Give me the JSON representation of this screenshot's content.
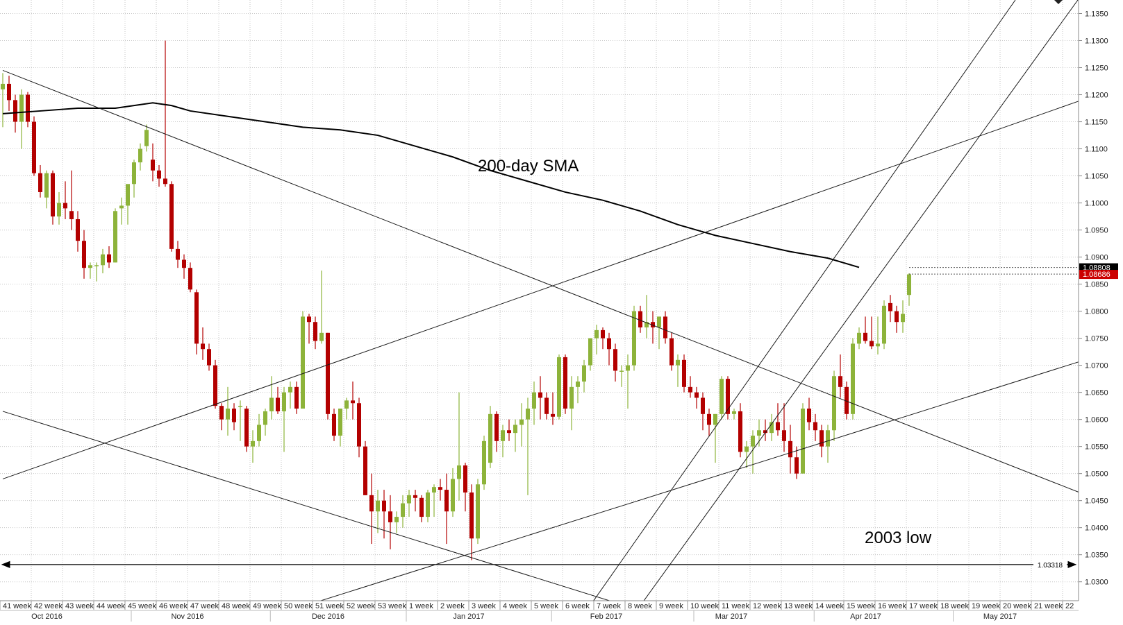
{
  "chart_data": {
    "type": "candlestick",
    "instrument": "",
    "title": "",
    "annotations": {
      "sma_label": "200-day SMA",
      "low_label": "2003 low"
    },
    "ylim": [
      1.0265,
      1.1375
    ],
    "y_ticks": [
      "1.1350",
      "1.1300",
      "1.1250",
      "1.1200",
      "1.1150",
      "1.1100",
      "1.1050",
      "1.1000",
      "1.0950",
      "1.0900",
      "1.0850",
      "1.0800",
      "1.0750",
      "1.0700",
      "1.0650",
      "1.0600",
      "1.0550",
      "1.0500",
      "1.0450",
      "1.0400",
      "1.0350",
      "1.0300"
    ],
    "price_tags": [
      {
        "label": "1.08808",
        "value": 1.08808,
        "color": "#000000"
      },
      {
        "label": "1.08686",
        "value": 1.08686,
        "color": "#cc0000"
      }
    ],
    "horizontal_line": {
      "value": 1.03318,
      "label": "1.03318"
    },
    "week_labels": [
      "41 week",
      "42 week",
      "43 week",
      "44 week",
      "45 week",
      "46 week",
      "47 week",
      "48 week",
      "49 week",
      "50 week",
      "51 week",
      "52 week",
      "53 week",
      "1 week",
      "2 week",
      "3 week",
      "4 week",
      "5 week",
      "6 week",
      "7 week",
      "8 week",
      "9 week",
      "10 week",
      "11 week",
      "12 week",
      "13 week",
      "14 week",
      "15 week",
      "16 week",
      "17 week",
      "18 week",
      "19 week",
      "20 week",
      "21 week",
      "22"
    ],
    "month_labels": [
      {
        "label": "Oct 2016",
        "week": 1.5
      },
      {
        "label": "Nov 2016",
        "week": 6
      },
      {
        "label": "Dec 2016",
        "week": 10.5
      },
      {
        "label": "Jan 2017",
        "week": 15
      },
      {
        "label": "Feb 2017",
        "week": 19.4
      },
      {
        "label": "Mar 2017",
        "week": 23.4
      },
      {
        "label": "Apr 2017",
        "week": 27.7
      },
      {
        "label": "May 2017",
        "week": 32
      }
    ],
    "colors": {
      "up": "#8db33a",
      "down": "#b30000",
      "wick": "#333333",
      "line": "#000000",
      "grid": "#c8c8c8"
    },
    "candles": [
      [
        1.121,
        1.124,
        1.114,
        1.122
      ],
      [
        1.122,
        1.1235,
        1.117,
        1.119
      ],
      [
        1.119,
        1.12,
        1.113,
        1.115
      ],
      [
        1.115,
        1.121,
        1.11,
        1.12
      ],
      [
        1.12,
        1.1205,
        1.114,
        1.115
      ],
      [
        1.115,
        1.116,
        1.105,
        1.1055
      ],
      [
        1.1055,
        1.107,
        1.101,
        1.102
      ],
      [
        1.101,
        1.106,
        1.099,
        1.1055
      ],
      [
        1.1055,
        1.106,
        1.096,
        1.0975
      ],
      [
        1.0975,
        1.102,
        1.096,
        1.1
      ],
      [
        1.1,
        1.104,
        1.097,
        1.099
      ],
      [
        1.0985,
        1.106,
        1.095,
        1.097
      ],
      [
        1.097,
        1.0985,
        1.091,
        1.093
      ],
      [
        1.093,
        1.095,
        1.086,
        1.088
      ],
      [
        1.088,
        1.089,
        1.086,
        1.0885
      ],
      [
        1.0885,
        1.089,
        1.0855,
        1.0885
      ],
      [
        1.0885,
        1.0915,
        1.087,
        1.0905
      ],
      [
        1.0905,
        1.092,
        1.088,
        1.089
      ],
      [
        1.089,
        1.099,
        1.089,
        1.0985
      ],
      [
        1.099,
        1.101,
        1.096,
        1.0995
      ],
      [
        1.0995,
        1.103,
        1.096,
        1.1035
      ],
      [
        1.1035,
        1.108,
        1.101,
        1.1075
      ],
      [
        1.1075,
        1.111,
        1.106,
        1.11
      ],
      [
        1.1105,
        1.1145,
        1.1095,
        1.1135
      ],
      [
        1.108,
        1.111,
        1.104,
        1.106
      ],
      [
        1.106,
        1.107,
        1.103,
        1.1045
      ],
      [
        1.1045,
        1.13,
        1.103,
        1.1035
      ],
      [
        1.1035,
        1.104,
        1.091,
        1.0915
      ],
      [
        1.0915,
        1.093,
        1.088,
        1.0895
      ],
      [
        1.0895,
        1.0905,
        1.086,
        1.088
      ],
      [
        1.088,
        1.089,
        1.0835,
        1.084
      ],
      [
        1.0835,
        1.084,
        1.072,
        1.074
      ],
      [
        1.074,
        1.077,
        1.071,
        1.073
      ],
      [
        1.073,
        1.074,
        1.069,
        1.07
      ],
      [
        1.07,
        1.071,
        1.062,
        1.0625
      ],
      [
        1.0625,
        1.063,
        1.058,
        1.06
      ],
      [
        1.06,
        1.066,
        1.057,
        1.062
      ],
      [
        1.062,
        1.063,
        1.058,
        1.0595
      ],
      [
        1.0625,
        1.0635,
        1.056,
        1.0625
      ],
      [
        1.062,
        1.0625,
        1.054,
        1.055
      ],
      [
        1.055,
        1.058,
        1.052,
        1.056
      ],
      [
        1.056,
        1.061,
        1.055,
        1.059
      ],
      [
        1.059,
        1.062,
        1.057,
        1.0615
      ],
      [
        1.0615,
        1.068,
        1.06,
        1.064
      ],
      [
        1.064,
        1.066,
        1.061,
        1.0615
      ],
      [
        1.0615,
        1.066,
        1.054,
        1.065
      ],
      [
        1.065,
        1.067,
        1.062,
        1.066
      ],
      [
        1.066,
        1.067,
        1.061,
        1.062
      ],
      [
        1.062,
        1.08,
        1.062,
        1.079
      ],
      [
        1.079,
        1.0795,
        1.074,
        1.078
      ],
      [
        1.078,
        1.079,
        1.073,
        1.0745
      ],
      [
        1.0745,
        1.0875,
        1.074,
        1.076
      ],
      [
        1.076,
        1.076,
        1.06,
        1.061
      ],
      [
        1.061,
        1.062,
        1.056,
        1.057
      ],
      [
        1.057,
        1.062,
        1.055,
        1.062
      ],
      [
        1.062,
        1.064,
        1.06,
        1.0635
      ],
      [
        1.0635,
        1.067,
        1.06,
        1.063
      ],
      [
        1.063,
        1.064,
        1.053,
        1.055
      ],
      [
        1.055,
        1.056,
        1.046,
        1.046
      ],
      [
        1.046,
        1.05,
        1.037,
        1.043
      ],
      [
        1.043,
        1.047,
        1.039,
        1.045
      ],
      [
        1.045,
        1.047,
        1.038,
        1.043
      ],
      [
        1.043,
        1.046,
        1.036,
        1.041
      ],
      [
        1.041,
        1.043,
        1.039,
        1.042
      ],
      [
        1.042,
        1.046,
        1.04,
        1.0445
      ],
      [
        1.0445,
        1.047,
        1.042,
        1.046
      ],
      [
        1.046,
        1.047,
        1.043,
        1.0455
      ],
      [
        1.0455,
        1.046,
        1.041,
        1.042
      ],
      [
        1.042,
        1.047,
        1.041,
        1.0465
      ],
      [
        1.0465,
        1.048,
        1.042,
        1.0475
      ],
      [
        1.0475,
        1.049,
        1.045,
        1.047
      ],
      [
        1.047,
        1.05,
        1.037,
        1.043
      ],
      [
        1.043,
        1.051,
        1.042,
        1.049
      ],
      [
        1.049,
        1.065,
        1.045,
        1.0515
      ],
      [
        1.0515,
        1.052,
        1.043,
        1.0465
      ],
      [
        1.0465,
        1.048,
        1.034,
        1.038
      ],
      [
        1.038,
        1.049,
        1.037,
        1.048
      ],
      [
        1.048,
        1.057,
        1.047,
        1.056
      ],
      [
        1.052,
        1.0625,
        1.051,
        1.061
      ],
      [
        1.061,
        1.0615,
        1.054,
        1.056
      ],
      [
        1.056,
        1.059,
        1.053,
        1.058
      ],
      [
        1.058,
        1.06,
        1.056,
        1.0575
      ],
      [
        1.0575,
        1.06,
        1.054,
        1.059
      ],
      [
        1.059,
        1.063,
        1.055,
        1.06
      ],
      [
        1.06,
        1.064,
        1.046,
        1.062
      ],
      [
        1.062,
        1.067,
        1.059,
        1.065
      ],
      [
        1.065,
        1.068,
        1.06,
        1.064
      ],
      [
        1.064,
        1.065,
        1.06,
        1.061
      ],
      [
        1.061,
        1.065,
        1.059,
        1.0605
      ],
      [
        1.0605,
        1.072,
        1.06,
        1.0715
      ],
      [
        1.0715,
        1.072,
        1.061,
        1.062
      ],
      [
        1.062,
        1.068,
        1.058,
        1.066
      ],
      [
        1.066,
        1.068,
        1.063,
        1.067
      ],
      [
        1.067,
        1.071,
        1.065,
        1.07
      ],
      [
        1.07,
        1.075,
        1.069,
        1.075
      ],
      [
        1.075,
        1.0775,
        1.072,
        1.0765
      ],
      [
        1.0765,
        1.077,
        1.073,
        1.075
      ],
      [
        1.075,
        1.076,
        1.07,
        1.073
      ],
      [
        1.073,
        1.074,
        1.067,
        1.069
      ],
      [
        1.069,
        1.07,
        1.066,
        1.069
      ],
      [
        1.069,
        1.072,
        1.062,
        1.07
      ],
      [
        1.07,
        1.081,
        1.069,
        1.08
      ],
      [
        1.08,
        1.081,
        1.076,
        1.077
      ],
      [
        1.077,
        1.083,
        1.075,
        1.078
      ],
      [
        1.078,
        1.08,
        1.074,
        1.077
      ],
      [
        1.077,
        1.079,
        1.073,
        1.079
      ],
      [
        1.079,
        1.08,
        1.074,
        1.075
      ],
      [
        1.075,
        1.076,
        1.069,
        1.07
      ],
      [
        1.07,
        1.072,
        1.066,
        1.071
      ],
      [
        1.071,
        1.072,
        1.065,
        1.066
      ],
      [
        1.066,
        1.068,
        1.064,
        1.065
      ],
      [
        1.065,
        1.066,
        1.062,
        1.064
      ],
      [
        1.064,
        1.065,
        1.058,
        1.061
      ],
      [
        1.061,
        1.062,
        1.057,
        1.059
      ],
      [
        1.059,
        1.061,
        1.052,
        1.061
      ],
      [
        1.061,
        1.068,
        1.06,
        1.0675
      ],
      [
        1.0675,
        1.068,
        1.06,
        1.061
      ],
      [
        1.061,
        1.062,
        1.06,
        1.0615
      ],
      [
        1.0615,
        1.063,
        1.053,
        1.054
      ],
      [
        1.054,
        1.056,
        1.051,
        1.055
      ],
      [
        1.055,
        1.058,
        1.05,
        1.057
      ],
      [
        1.057,
        1.06,
        1.055,
        1.058
      ],
      [
        1.058,
        1.06,
        1.056,
        1.0575
      ],
      [
        1.0575,
        1.061,
        1.056,
        1.0595
      ],
      [
        1.0595,
        1.063,
        1.057,
        1.058
      ],
      [
        1.058,
        1.063,
        1.054,
        1.056
      ],
      [
        1.056,
        1.059,
        1.05,
        1.053
      ],
      [
        1.053,
        1.055,
        1.049,
        1.05
      ],
      [
        1.05,
        1.063,
        1.05,
        1.062
      ],
      [
        1.062,
        1.064,
        1.058,
        1.0595
      ],
      [
        1.0595,
        1.061,
        1.056,
        1.058
      ],
      [
        1.058,
        1.059,
        1.053,
        1.055
      ],
      [
        1.055,
        1.059,
        1.052,
        1.058
      ],
      [
        1.058,
        1.069,
        1.056,
        1.068
      ],
      [
        1.068,
        1.072,
        1.064,
        1.066
      ],
      [
        1.066,
        1.067,
        1.06,
        1.061
      ],
      [
        1.061,
        1.075,
        1.06,
        1.074
      ],
      [
        1.074,
        1.077,
        1.073,
        1.076
      ],
      [
        1.076,
        1.079,
        1.074,
        1.0745
      ],
      [
        1.0745,
        1.079,
        1.073,
        1.0735
      ],
      [
        1.0735,
        1.079,
        1.072,
        1.074
      ],
      [
        1.074,
        1.082,
        1.073,
        1.081
      ],
      [
        1.0815,
        1.083,
        1.078,
        1.08
      ],
      [
        1.08,
        1.081,
        1.076,
        1.078
      ],
      [
        1.078,
        1.082,
        1.076,
        1.0795
      ],
      [
        1.083,
        1.087,
        1.081,
        1.0868
      ]
    ],
    "sma": [
      [
        0,
        1.1165
      ],
      [
        6,
        1.117
      ],
      [
        12,
        1.1175
      ],
      [
        18,
        1.1175
      ],
      [
        24,
        1.1185
      ],
      [
        27,
        1.118
      ],
      [
        30,
        1.117
      ],
      [
        36,
        1.116
      ],
      [
        42,
        1.115
      ],
      [
        48,
        1.114
      ],
      [
        54,
        1.1135
      ],
      [
        60,
        1.1125
      ],
      [
        66,
        1.1105
      ],
      [
        72,
        1.1085
      ],
      [
        78,
        1.106
      ],
      [
        84,
        1.104
      ],
      [
        90,
        1.102
      ],
      [
        96,
        1.1005
      ],
      [
        102,
        1.0985
      ],
      [
        108,
        1.096
      ],
      [
        114,
        1.094
      ],
      [
        120,
        1.0925
      ],
      [
        126,
        1.091
      ],
      [
        132,
        1.0898
      ],
      [
        137,
        1.0881
      ]
    ],
    "trendlines": [
      [
        [
          0,
          1.1245
        ],
        [
          180,
          1.043
        ]
      ],
      [
        [
          0,
          1.0615
        ],
        [
          104,
          1.024
        ]
      ],
      [
        [
          0,
          1.049
        ],
        [
          180,
          1.122
        ]
      ],
      [
        [
          44,
          1.024
        ],
        [
          180,
          1.0735
        ]
      ],
      [
        [
          93,
          1.024
        ],
        [
          162,
          1.1375
        ]
      ],
      [
        [
          101,
          1.024
        ],
        [
          172,
          1.1375
        ]
      ]
    ]
  }
}
